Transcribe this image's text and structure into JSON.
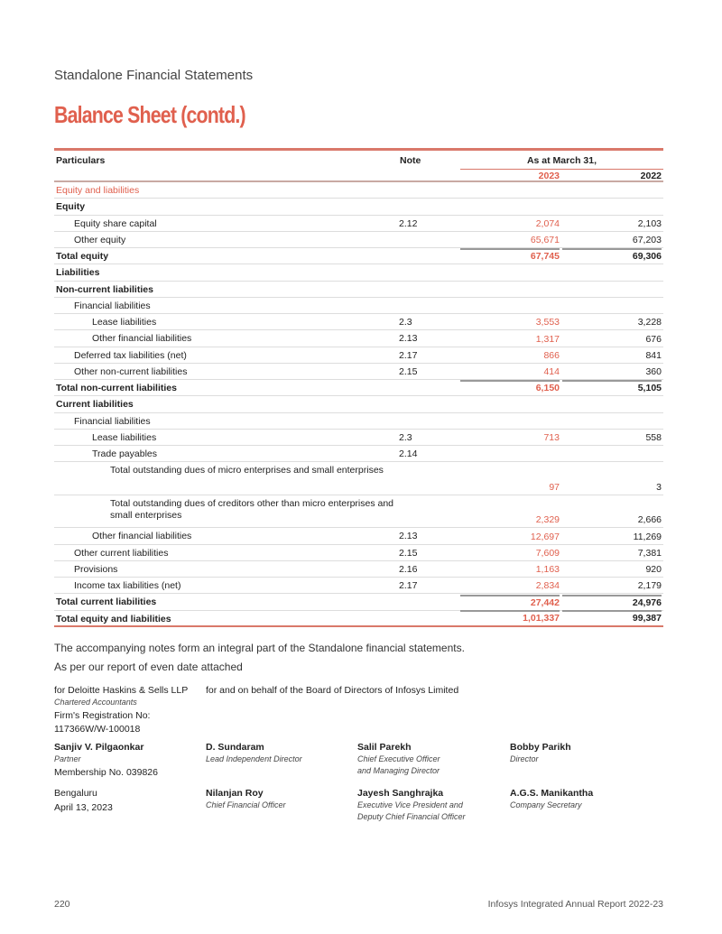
{
  "header": {
    "section": "Standalone Financial Statements",
    "title": "Balance Sheet (contd.)"
  },
  "table": {
    "col_particulars": "Particulars",
    "col_note": "Note",
    "col_asat": "As at March 31,",
    "year1": "2023",
    "year2": "2022",
    "rows": [
      {
        "label": "Equity and liabilities",
        "style": "sec i0"
      },
      {
        "label": "Equity",
        "style": "b i0"
      },
      {
        "label": "Equity share capital",
        "note": "2.12",
        "v2023": "2,074",
        "v2022": "2,103",
        "style": "i1"
      },
      {
        "label": "Other equity",
        "v2023": "65,671",
        "v2022": "67,203",
        "style": "i1"
      },
      {
        "label": "Total equity",
        "v2023": "67,745",
        "v2022": "69,306",
        "style": "b ov i0"
      },
      {
        "label": "Liabilities",
        "style": "b i0"
      },
      {
        "label": "Non-current liabilities",
        "style": "b i0"
      },
      {
        "label": "Financial liabilities",
        "style": "i1"
      },
      {
        "label": "Lease liabilities",
        "note": "2.3",
        "v2023": "3,553",
        "v2022": "3,228",
        "style": "i2"
      },
      {
        "label": "Other financial liabilities",
        "note": "2.13",
        "v2023": "1,317",
        "v2022": "676",
        "style": "i2"
      },
      {
        "label": "Deferred tax liabilities (net)",
        "note": "2.17",
        "v2023": "866",
        "v2022": "841",
        "style": "i1"
      },
      {
        "label": "Other non-current liabilities",
        "note": "2.15",
        "v2023": "414",
        "v2022": "360",
        "style": "i1"
      },
      {
        "label": "Total non-current liabilities",
        "v2023": "6,150",
        "v2022": "5,105",
        "style": "b ov i0"
      },
      {
        "label": "Current liabilities",
        "style": "b i0"
      },
      {
        "label": "Financial liabilities",
        "style": "i1"
      },
      {
        "label": "Lease liabilities",
        "note": "2.3",
        "v2023": "713",
        "v2022": "558",
        "style": "i2"
      },
      {
        "label": "Trade payables",
        "note": "2.14",
        "style": "i2"
      },
      {
        "label": "Total outstanding dues of micro enterprises and small enterprises",
        "v2023": "97",
        "v2022": "3",
        "style": "i3 dbl"
      },
      {
        "label": "Total outstanding dues of creditors other than micro enterprises and small enterprises",
        "v2023": "2,329",
        "v2022": "2,666",
        "style": "i3 dbl"
      },
      {
        "label": "Other financial liabilities",
        "note": "2.13",
        "v2023": "12,697",
        "v2022": "11,269",
        "style": "i2"
      },
      {
        "label": "Other current liabilities",
        "note": "2.15",
        "v2023": "7,609",
        "v2022": "7,381",
        "style": "i1"
      },
      {
        "label": "Provisions",
        "note": "2.16",
        "v2023": "1,163",
        "v2022": "920",
        "style": "i1"
      },
      {
        "label": "Income tax liabilities (net)",
        "note": "2.17",
        "v2023": "2,834",
        "v2022": "2,179",
        "style": "i1"
      },
      {
        "label": "Total current liabilities",
        "v2023": "27,442",
        "v2022": "24,976",
        "style": "b ov i0"
      },
      {
        "label": "Total equity and liabilities",
        "v2023": "1,01,337",
        "v2022": "99,387",
        "style": "b ov i0 last"
      }
    ]
  },
  "notes": {
    "line1": "The accompanying notes form an integral part of the Standalone financial statements.",
    "line2": "As per our report of even date attached"
  },
  "signatures": {
    "auditor": {
      "firm": "for Deloitte Haskins & Sells LLP",
      "type": "Chartered Accountants",
      "reg_label": "Firm's Registration No:",
      "reg_no": "117366W/W-100018",
      "name": "Sanjiv V. Pilgaonkar",
      "role": "Partner",
      "membership": "Membership No. 039826",
      "place": "Bengaluru",
      "date": "April 13, 2023"
    },
    "board_heading": "for and on behalf of the Board of Directors of Infosys Limited",
    "people": [
      {
        "name": "D. Sundaram",
        "role1": "Lead Independent Director",
        "role2": ""
      },
      {
        "name": "Salil Parekh",
        "role1": "Chief Executive Officer",
        "role2": "and Managing Director"
      },
      {
        "name": "Bobby Parikh",
        "role1": "Director",
        "role2": ""
      },
      {
        "name": "Nilanjan Roy",
        "role1": "Chief Financial Officer",
        "role2": ""
      },
      {
        "name": "Jayesh Sanghrajka",
        "role1": "Executive Vice President and",
        "role2": "Deputy Chief Financial Officer"
      },
      {
        "name": "A.G.S. Manikantha",
        "role1": "Company Secretary",
        "role2": ""
      }
    ]
  },
  "footer": {
    "page": "220",
    "report": "Infosys Integrated Annual Report 2022-23"
  }
}
